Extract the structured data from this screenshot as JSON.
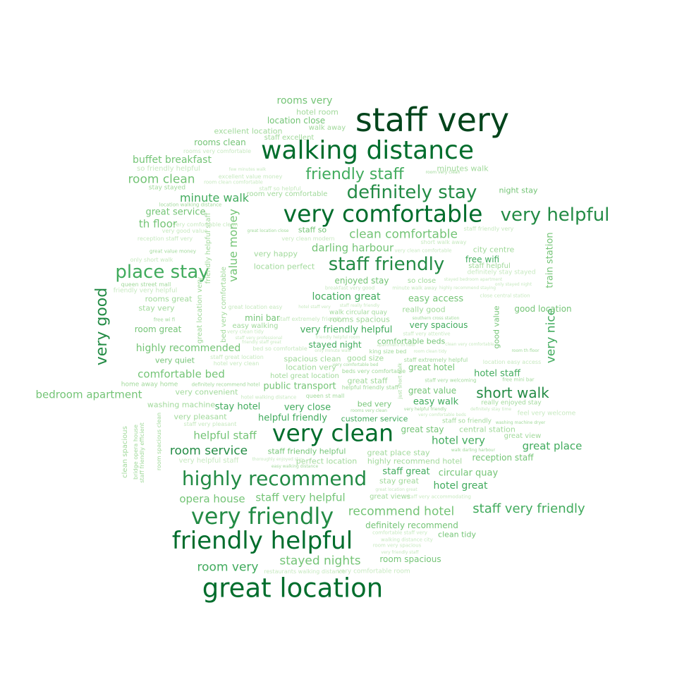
{
  "colors": {
    "background": "#ffffff",
    "palette": [
      "#00441b",
      "#006d2c",
      "#238b45",
      "#41ab5d",
      "#74c476",
      "#a1d99b",
      "#c7e9c0"
    ]
  },
  "words": [
    {
      "t": "staff very",
      "c": "#00441b"
    },
    {
      "t": "walking distance",
      "c": "#006d2c"
    },
    {
      "t": "very comfortable",
      "c": "#006d2c"
    },
    {
      "t": "great location",
      "c": "#006d2c"
    },
    {
      "t": "very clean",
      "c": "#006d2c"
    },
    {
      "t": "friendly helpful",
      "c": "#006d2c"
    },
    {
      "t": "very friendly",
      "c": "#238b45"
    },
    {
      "t": "highly recommend",
      "c": "#238b45"
    },
    {
      "t": "definitely stay",
      "c": "#238b45"
    },
    {
      "t": "very helpful",
      "c": "#238b45"
    },
    {
      "t": "staff friendly",
      "c": "#238b45"
    },
    {
      "t": "place stay",
      "c": "#41ab5d"
    },
    {
      "t": "friendly staff",
      "c": "#41ab5d"
    },
    {
      "t": "very good",
      "c": "#238b45"
    },
    {
      "t": "short walk",
      "c": "#238b45"
    },
    {
      "t": "staff very friendly",
      "c": "#41ab5d"
    },
    {
      "t": "recommend hotel",
      "c": "#74c476"
    },
    {
      "t": "stayed nights",
      "c": "#74c476"
    },
    {
      "t": "room very",
      "c": "#41ab5d"
    },
    {
      "t": "room service",
      "c": "#238b45"
    },
    {
      "t": "clean comfortable",
      "c": "#74c476"
    },
    {
      "t": "room clean",
      "c": "#74c476"
    },
    {
      "t": "minute walk",
      "c": "#41ab5d"
    },
    {
      "t": "very nice",
      "c": "#41ab5d"
    },
    {
      "t": "value money",
      "c": "#74c476"
    },
    {
      "t": "rooms very",
      "c": "#74c476"
    },
    {
      "t": "bedroom apartment",
      "c": "#74c476"
    },
    {
      "t": "comfortable bed",
      "c": "#74c476"
    },
    {
      "t": "darling harbour",
      "c": "#74c476"
    },
    {
      "t": "great place",
      "c": "#41ab5d"
    },
    {
      "t": "hotel very",
      "c": "#41ab5d"
    },
    {
      "t": "helpful staff",
      "c": "#74c476"
    },
    {
      "t": "opera house",
      "c": "#74c476"
    },
    {
      "t": "staff very helpful",
      "c": "#74c476"
    },
    {
      "t": "highly recommended",
      "c": "#74c476"
    },
    {
      "t": "buffet breakfast",
      "c": "#74c476"
    },
    {
      "t": "th floor",
      "c": "#74c476"
    },
    {
      "t": "great service",
      "c": "#74c476"
    },
    {
      "t": "location great",
      "c": "#41ab5d"
    },
    {
      "t": "easy access",
      "c": "#74c476"
    },
    {
      "t": "very friendly helpful",
      "c": "#41ab5d"
    },
    {
      "t": "public transport",
      "c": "#74c476"
    },
    {
      "t": "stay hotel",
      "c": "#41ab5d"
    },
    {
      "t": "very close",
      "c": "#41ab5d"
    },
    {
      "t": "helpful friendly",
      "c": "#41ab5d"
    },
    {
      "t": "customer service",
      "c": "#41ab5d"
    },
    {
      "t": "easy walk",
      "c": "#41ab5d"
    },
    {
      "t": "hotel staff",
      "c": "#41ab5d"
    },
    {
      "t": "staff great",
      "c": "#41ab5d"
    },
    {
      "t": "circular quay",
      "c": "#74c476"
    },
    {
      "t": "hotel great",
      "c": "#41ab5d"
    },
    {
      "t": "definitely recommend",
      "c": "#74c476"
    },
    {
      "t": "room spacious",
      "c": "#74c476"
    },
    {
      "t": "very spacious",
      "c": "#41ab5d"
    },
    {
      "t": "good location",
      "c": "#74c476"
    },
    {
      "t": "train station",
      "c": "#74c476"
    },
    {
      "t": "hotel room",
      "c": "#a1d99b"
    },
    {
      "t": "location close",
      "c": "#74c476"
    },
    {
      "t": "excellent location",
      "c": "#a1d99b"
    },
    {
      "t": "walk away",
      "c": "#a1d99b"
    },
    {
      "t": "rooms clean",
      "c": "#74c476"
    },
    {
      "t": "staff excellent",
      "c": "#a1d99b"
    },
    {
      "t": "minutes walk",
      "c": "#a1d99b"
    },
    {
      "t": "night stay",
      "c": "#74c476"
    },
    {
      "t": "free wifi",
      "c": "#41ab5d"
    },
    {
      "t": "city centre",
      "c": "#a1d99b"
    },
    {
      "t": "staff so",
      "c": "#74c476"
    },
    {
      "t": "very happy",
      "c": "#a1d99b"
    },
    {
      "t": "location perfect",
      "c": "#a1d99b"
    },
    {
      "t": "enjoyed stay",
      "c": "#74c476"
    },
    {
      "t": "so close",
      "c": "#a1d99b"
    },
    {
      "t": "really good",
      "c": "#a1d99b"
    },
    {
      "t": "staff helpful",
      "c": "#a1d99b"
    },
    {
      "t": "rooms great",
      "c": "#a1d99b"
    },
    {
      "t": "stay very",
      "c": "#a1d99b"
    },
    {
      "t": "room great",
      "c": "#74c476"
    },
    {
      "t": "mini bar",
      "c": "#74c476"
    },
    {
      "t": "easy walking",
      "c": "#a1d99b"
    },
    {
      "t": "rooms spacious",
      "c": "#a1d99b"
    },
    {
      "t": "stayed night",
      "c": "#41ab5d"
    },
    {
      "t": "comfortable beds",
      "c": "#74c476"
    },
    {
      "t": "very quiet",
      "c": "#74c476"
    },
    {
      "t": "spacious clean",
      "c": "#a1d99b"
    },
    {
      "t": "good size",
      "c": "#a1d99b"
    },
    {
      "t": "great hotel",
      "c": "#74c476"
    },
    {
      "t": "location very",
      "c": "#a1d99b"
    },
    {
      "t": "hotel great location",
      "c": "#a1d99b"
    },
    {
      "t": "great staff",
      "c": "#a1d99b"
    },
    {
      "t": "very convenient",
      "c": "#a1d99b"
    },
    {
      "t": "great value",
      "c": "#74c476"
    },
    {
      "t": "washing machine",
      "c": "#a1d99b"
    },
    {
      "t": "very pleasant",
      "c": "#a1d99b"
    },
    {
      "t": "great stay",
      "c": "#74c476"
    },
    {
      "t": "central station",
      "c": "#a1d99b"
    },
    {
      "t": "great view",
      "c": "#a1d99b"
    },
    {
      "t": "reception staff",
      "c": "#74c476"
    },
    {
      "t": "staff friendly helpful",
      "c": "#74c476"
    },
    {
      "t": "great place stay",
      "c": "#a1d99b"
    },
    {
      "t": "perfect location",
      "c": "#a1d99b"
    },
    {
      "t": "highly recommend hotel",
      "c": "#a1d99b"
    },
    {
      "t": "stay great",
      "c": "#a1d99b"
    },
    {
      "t": "great views",
      "c": "#a1d99b"
    },
    {
      "t": "clean tidy",
      "c": "#74c476"
    },
    {
      "t": "bed very",
      "c": "#74c476"
    },
    {
      "t": "good value",
      "c": "#74c476"
    },
    {
      "t": "bed very comfortable",
      "c": "#a1d99b"
    },
    {
      "t": "friendly helpful staff",
      "c": "#a1d99b"
    },
    {
      "t": "great location very",
      "c": "#a1d99b"
    },
    {
      "t": "clean spacious",
      "c": "#a1d99b"
    },
    {
      "t": "bridge opera house",
      "c": "#a1d99b"
    },
    {
      "t": "staff friendly efficient",
      "c": "#a1d99b"
    },
    {
      "t": "room spacious clean",
      "c": "#a1d99b"
    },
    {
      "t": "home away home",
      "c": "#a1d99b"
    },
    {
      "t": "rooms very comfortable",
      "c": "#c7e9c0"
    },
    {
      "t": "so friendly helpful",
      "c": "#c7e9c0"
    },
    {
      "t": "stay stayed",
      "c": "#a1d99b"
    },
    {
      "t": "location walking distance",
      "c": "#a1d99b"
    },
    {
      "t": "few minutes walk",
      "c": "#c7e9c0"
    },
    {
      "t": "excellent value money",
      "c": "#c7e9c0"
    },
    {
      "t": "room clean comfortable",
      "c": "#c7e9c0"
    },
    {
      "t": "staff so helpful",
      "c": "#c7e9c0"
    },
    {
      "t": "room very comfortable",
      "c": "#a1d99b"
    },
    {
      "t": "room very clean",
      "c": "#a1d99b"
    },
    {
      "t": "very comfortable clean",
      "c": "#c7e9c0"
    },
    {
      "t": "very good value",
      "c": "#c7e9c0"
    },
    {
      "t": "reception staff very",
      "c": "#c7e9c0"
    },
    {
      "t": "great value money",
      "c": "#a1d99b"
    },
    {
      "t": "only short walk",
      "c": "#c7e9c0"
    },
    {
      "t": "queen street mall",
      "c": "#a1d99b"
    },
    {
      "t": "friendly very helpful",
      "c": "#c7e9c0"
    },
    {
      "t": "great location close",
      "c": "#a1d99b"
    },
    {
      "t": "very clean modern",
      "c": "#c7e9c0"
    },
    {
      "t": "short walk away",
      "c": "#c7e9c0"
    },
    {
      "t": "very clean comfortable",
      "c": "#c7e9c0"
    },
    {
      "t": "staff friendly very",
      "c": "#c7e9c0"
    },
    {
      "t": "definitely stay stayed",
      "c": "#c7e9c0"
    },
    {
      "t": "stayed bedroom apartment",
      "c": "#c7e9c0"
    },
    {
      "t": "breakfast very good",
      "c": "#c7e9c0"
    },
    {
      "t": "minute walk away",
      "c": "#c7e9c0"
    },
    {
      "t": "highly recommend staying",
      "c": "#c7e9c0"
    },
    {
      "t": "only stayed night",
      "c": "#c7e9c0"
    },
    {
      "t": "close central station",
      "c": "#c7e9c0"
    },
    {
      "t": "hotel staff very",
      "c": "#c7e9c0"
    },
    {
      "t": "staff really friendly",
      "c": "#c7e9c0"
    },
    {
      "t": "great location easy",
      "c": "#c7e9c0"
    },
    {
      "t": "walk circular quay",
      "c": "#a1d99b"
    },
    {
      "t": "southern cross station",
      "c": "#a1d99b"
    },
    {
      "t": "staff extremely friendly",
      "c": "#c7e9c0"
    },
    {
      "t": "free wi fi",
      "c": "#a1d99b"
    },
    {
      "t": "very clean tidy",
      "c": "#c7e9c0"
    },
    {
      "t": "staff very professional",
      "c": "#c7e9c0"
    },
    {
      "t": "friendly staff great",
      "c": "#c7e9c0"
    },
    {
      "t": "friendly helpful room",
      "c": "#c7e9c0"
    },
    {
      "t": "staff very attentive",
      "c": "#c7e9c0"
    },
    {
      "t": "apartment th floor",
      "c": "#c7e9c0"
    },
    {
      "t": "clean very comfortable",
      "c": "#c7e9c0"
    },
    {
      "t": "bed so comfortable",
      "c": "#c7e9c0"
    },
    {
      "t": "only minute walk",
      "c": "#c7e9c0"
    },
    {
      "t": "king size bed",
      "c": "#a1d99b"
    },
    {
      "t": "room clean tidy",
      "c": "#c7e9c0"
    },
    {
      "t": "room th floor",
      "c": "#a1d99b"
    },
    {
      "t": "staff great location",
      "c": "#c7e9c0"
    },
    {
      "t": "hotel very clean",
      "c": "#c7e9c0"
    },
    {
      "t": "very comfortable bed",
      "c": "#a1d99b"
    },
    {
      "t": "staff extremely helpful",
      "c": "#a1d99b"
    },
    {
      "t": "location easy access",
      "c": "#c7e9c0"
    },
    {
      "t": "beds very comfortable",
      "c": "#a1d99b"
    },
    {
      "t": "staff very welcoming",
      "c": "#a1d99b"
    },
    {
      "t": "free mini bar",
      "c": "#a1d99b"
    },
    {
      "t": "definitely recommend hotel",
      "c": "#a1d99b"
    },
    {
      "t": "helpful friendly staff",
      "c": "#a1d99b"
    },
    {
      "t": "hotel walking distance",
      "c": "#c7e9c0"
    },
    {
      "t": "queen st mall",
      "c": "#a1d99b"
    },
    {
      "t": "just short walk",
      "c": "#a1d99b"
    },
    {
      "t": "really enjoyed stay",
      "c": "#a1d99b"
    },
    {
      "t": "rooms very clean",
      "c": "#a1d99b"
    },
    {
      "t": "very helpful friendly",
      "c": "#a1d99b"
    },
    {
      "t": "definitely stay time",
      "c": "#c7e9c0"
    },
    {
      "t": "feel very welcome",
      "c": "#c7e9c0"
    },
    {
      "t": "very comfortable beds",
      "c": "#c7e9c0"
    },
    {
      "t": "staff so friendly",
      "c": "#a1d99b"
    },
    {
      "t": "staff very pleasant",
      "c": "#c7e9c0"
    },
    {
      "t": "washing machine dryer",
      "c": "#a1d99b"
    },
    {
      "t": "walk darling harbour",
      "c": "#a1d99b"
    },
    {
      "t": "very helpful staff",
      "c": "#c7e9c0"
    },
    {
      "t": "thoroughly enjoyed stay",
      "c": "#c7e9c0"
    },
    {
      "t": "easy walking distance",
      "c": "#a1d99b"
    },
    {
      "t": "great location great",
      "c": "#c7e9c0"
    },
    {
      "t": "staff very accommodating",
      "c": "#c7e9c0"
    },
    {
      "t": "comfortable staff very",
      "c": "#c7e9c0"
    },
    {
      "t": "walking distance city",
      "c": "#c7e9c0"
    },
    {
      "t": "room very spacious",
      "c": "#c7e9c0"
    },
    {
      "t": "very friendly staff",
      "c": "#c7e9c0"
    },
    {
      "t": "restaurants walking distance",
      "c": "#c7e9c0"
    },
    {
      "t": "very comfortable room",
      "c": "#c7e9c0"
    },
    {
      "t": "stay great location",
      "c": "#c7e9c0"
    },
    {
      "t": "good value money",
      "c": "#a1d99b"
    }
  ]
}
